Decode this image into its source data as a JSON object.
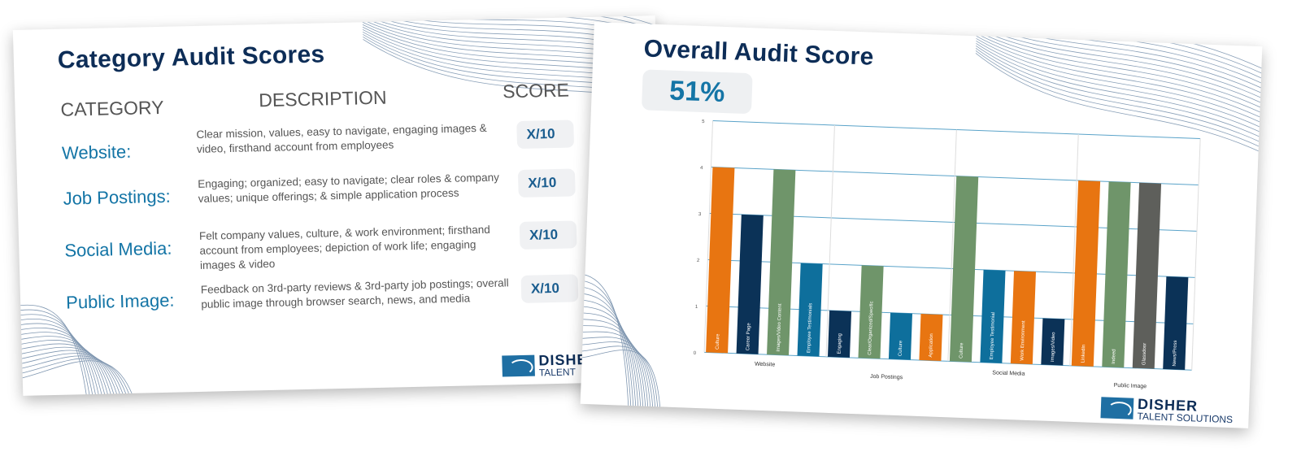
{
  "left_slide": {
    "title": "Category Audit Scores",
    "headers": {
      "category": "CATEGORY",
      "description": "DESCRIPTION",
      "score": "SCORE"
    },
    "rows": [
      {
        "category": "Website:",
        "description": "Clear mission, values, easy to navigate, engaging images & video, firsthand account from employees",
        "score": "X/10"
      },
      {
        "category": "Job Postings:",
        "description": "Engaging; organized; easy to navigate; clear roles & company values; unique offerings; & simple application process",
        "score": "X/10"
      },
      {
        "category": "Social Media:",
        "description": "Felt company values, culture, & work environment; firsthand account from employees; depiction of work life; engaging images & video",
        "score": "X/10"
      },
      {
        "category": "Public Image:",
        "description": "Feedback on 3rd-party reviews & 3rd-party job postings; overall public image through browser search, news, and media",
        "score": "X/10"
      }
    ],
    "logo": {
      "name": "DISHER",
      "sub": "TALENT"
    }
  },
  "right_slide": {
    "title": "Overall Audit Score",
    "overall_score": "51%",
    "logo": {
      "name": "DISHER",
      "sub": "TALENT SOLUTIONS"
    }
  },
  "colors": {
    "orange": "#e87511",
    "navy": "#0b3257",
    "green": "#6f956a",
    "blue": "#0e6f9c",
    "gray": "#5e5f5b",
    "title": "#0d2d57",
    "accent": "#1475a6"
  },
  "chart_data": {
    "type": "bar",
    "ylim": [
      0,
      5
    ],
    "yticks": [
      "0",
      "1",
      "2",
      "3",
      "4",
      "5"
    ],
    "grid": true,
    "groups": [
      {
        "label": "Website",
        "bars": [
          {
            "label": "Culture",
            "value": 4,
            "color": "#e87511"
          },
          {
            "label": "Career Page",
            "value": 3,
            "color": "#0b3257"
          },
          {
            "label": "Images/Video Content",
            "value": 4,
            "color": "#6f956a"
          },
          {
            "label": "Employee Testimonials",
            "value": 2,
            "color": "#0e6f9c"
          }
        ]
      },
      {
        "label": "Job Postings",
        "bars": [
          {
            "label": "Engaging",
            "value": 1,
            "color": "#0b3257"
          },
          {
            "label": "Clear/Organized/Specific",
            "value": 2,
            "color": "#6f956a"
          },
          {
            "label": "Culture",
            "value": 1,
            "color": "#0e6f9c"
          },
          {
            "label": "Application",
            "value": 1,
            "color": "#e87511"
          }
        ]
      },
      {
        "label": "Social Media",
        "bars": [
          {
            "label": "Culture",
            "value": 4,
            "color": "#6f956a"
          },
          {
            "label": "Employee Testimonial",
            "value": 2,
            "color": "#0e6f9c"
          },
          {
            "label": "Work Environment",
            "value": 2,
            "color": "#e87511"
          },
          {
            "label": "Images/Video",
            "value": 1,
            "color": "#0b3257"
          }
        ]
      },
      {
        "label": "Public Image",
        "bars": [
          {
            "label": "LinkedIn",
            "value": 4,
            "color": "#e87511"
          },
          {
            "label": "Indeed",
            "value": 4,
            "color": "#6f956a"
          },
          {
            "label": "Glassdoor",
            "value": 4,
            "color": "#5e5f5b"
          },
          {
            "label": "News/Press",
            "value": 2,
            "color": "#0b3257"
          }
        ]
      }
    ]
  }
}
